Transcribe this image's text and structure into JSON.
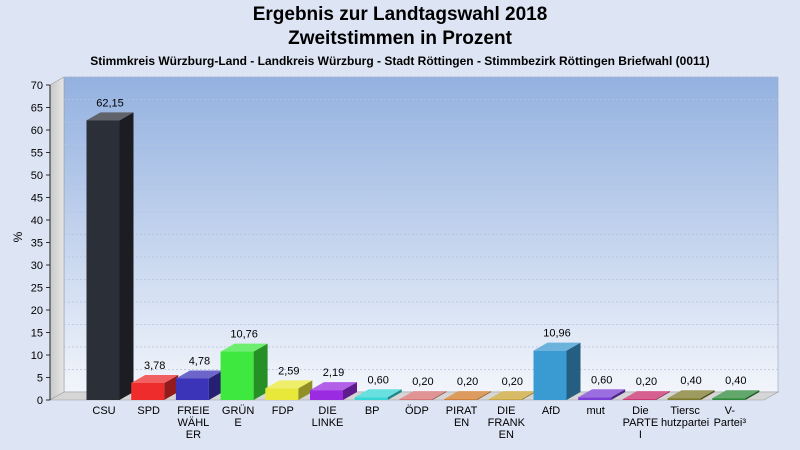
{
  "chart_data": {
    "type": "bar",
    "title": "Ergebnis zur Landtagswahl 2018",
    "subtitle": "Zweitstimmen in Prozent",
    "subtitle2": "Stimmkreis Würzburg-Land - Landkreis Würzburg - Stadt Röttingen - Stimmbezirk Röttingen Briefwahl (0011)",
    "xlabel": "",
    "ylabel": "%",
    "ylim": [
      0,
      70
    ],
    "ytick_step": 5,
    "grid": true,
    "legend": "none",
    "categories": [
      {
        "label": [
          "CSU"
        ],
        "value": 62.15,
        "value_label": "62,15",
        "color": "#2b2f38"
      },
      {
        "label": [
          "SPD"
        ],
        "value": 3.78,
        "value_label": "3,78",
        "color": "#ee2c2c"
      },
      {
        "label": [
          "FREIE",
          "WÄHL",
          "ER"
        ],
        "value": 4.78,
        "value_label": "4,78",
        "color": "#3b33b8"
      },
      {
        "label": [
          "GRÜN",
          "E"
        ],
        "value": 10.76,
        "value_label": "10,76",
        "color": "#3ee83e"
      },
      {
        "label": [
          "FDP"
        ],
        "value": 2.59,
        "value_label": "2,59",
        "color": "#e8e83a"
      },
      {
        "label": [
          "DIE",
          "LINKE"
        ],
        "value": 2.19,
        "value_label": "2,19",
        "color": "#9a2be0"
      },
      {
        "label": [
          "BP"
        ],
        "value": 0.6,
        "value_label": "0,60",
        "color": "#36d6d6"
      },
      {
        "label": [
          "ÖDP"
        ],
        "value": 0.2,
        "value_label": "0,20",
        "color": "#d57070"
      },
      {
        "label": [
          "PIRAT",
          "EN"
        ],
        "value": 0.2,
        "value_label": "0,20",
        "color": "#d27a2a"
      },
      {
        "label": [
          "DIE",
          "FRANK",
          "EN"
        ],
        "value": 0.2,
        "value_label": "0,20",
        "color": "#c9a434"
      },
      {
        "label": [
          "AfD"
        ],
        "value": 10.96,
        "value_label": "10,96",
        "color": "#3a9ad2"
      },
      {
        "label": [
          "mut"
        ],
        "value": 0.6,
        "value_label": "0,60",
        "color": "#7a3ed6"
      },
      {
        "label": [
          "Die",
          "PARTE",
          "I"
        ],
        "value": 0.2,
        "value_label": "0,20",
        "color": "#c82c6c"
      },
      {
        "label": [
          "Tiersc",
          "hutzpartei"
        ],
        "value": 0.4,
        "value_label": "0,40",
        "color": "#7e7a2c"
      },
      {
        "label": [
          "V-",
          "Partei³"
        ],
        "value": 0.4,
        "value_label": "0,40",
        "color": "#2e8a3a"
      }
    ]
  }
}
